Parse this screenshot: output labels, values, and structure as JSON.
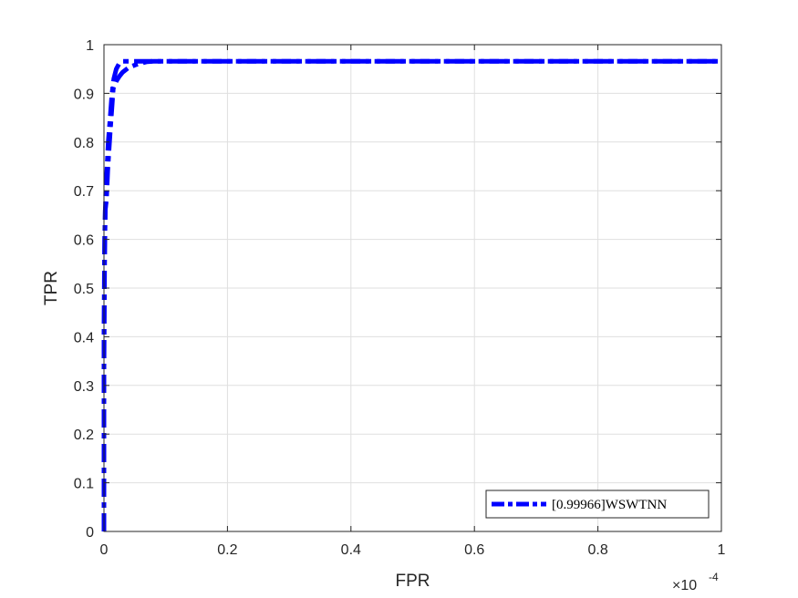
{
  "chart_data": {
    "type": "line",
    "title": "",
    "xlabel": "FPR",
    "ylabel": "TPR",
    "x_multiplier": {
      "base": "×10",
      "exponent": "-4"
    },
    "xlim": [
      0,
      1
    ],
    "ylim": [
      0,
      1
    ],
    "x_ticks": [
      "0",
      "0.2",
      "0.4",
      "0.6",
      "0.8",
      "1"
    ],
    "y_ticks": [
      "0",
      "0.1",
      "0.2",
      "0.3",
      "0.4",
      "0.5",
      "0.6",
      "0.7",
      "0.8",
      "0.9",
      "1"
    ],
    "grid": true,
    "legend_position": "bottom-right",
    "series": [
      {
        "name": "[0.99966]WSWTNN",
        "color": "#0000ff",
        "line_style": "dash-dot",
        "x": [
          0,
          0,
          0.001,
          0.002,
          0.003,
          0.004,
          0.005,
          0.006,
          0.008,
          0.01,
          0.015,
          0.02,
          0.025,
          0.03,
          0.04,
          0.05,
          0.06,
          0.07,
          0.08,
          0.1,
          0.2,
          0.4,
          0.6,
          0.8,
          1.0
        ],
        "y": [
          0,
          0.33,
          0.55,
          0.66,
          0.67,
          0.68,
          0.71,
          0.74,
          0.78,
          0.82,
          0.91,
          0.925,
          0.935,
          0.943,
          0.953,
          0.958,
          0.962,
          0.965,
          0.966,
          0.966,
          0.966,
          0.966,
          0.966,
          0.966,
          0.966
        ]
      },
      {
        "name": "",
        "color": "#0000ff",
        "line_style": "dash-dot",
        "x": [
          0,
          0,
          0.001,
          0.003,
          0.005,
          0.007,
          0.01,
          0.013,
          0.016,
          0.02,
          0.025,
          0.03,
          0.04,
          0.06,
          0.1,
          0.2,
          0.4,
          0.6,
          0.8,
          1.0
        ],
        "y": [
          0,
          0.4,
          0.6,
          0.7,
          0.75,
          0.8,
          0.85,
          0.9,
          0.93,
          0.95,
          0.962,
          0.966,
          0.966,
          0.966,
          0.966,
          0.966,
          0.966,
          0.966,
          0.966,
          0.966
        ]
      }
    ]
  }
}
